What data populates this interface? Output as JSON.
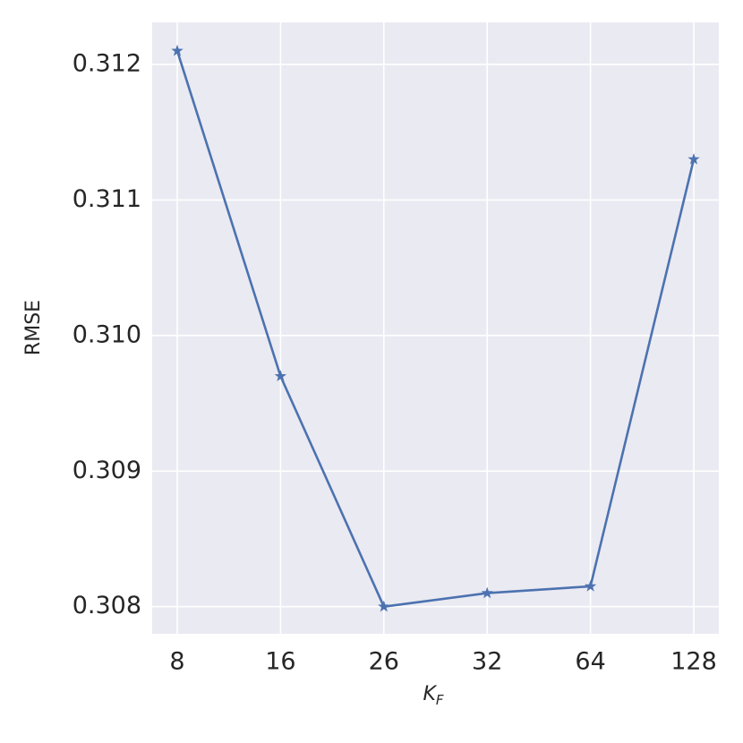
{
  "chart_data": {
    "type": "line",
    "ylabel": "RMSE",
    "xlabel": {
      "main": "K",
      "sub": "F"
    },
    "categories": [
      "8",
      "16",
      "26",
      "32",
      "64",
      "128"
    ],
    "series": [
      {
        "color": "#4c72b0",
        "values": [
          0.3121,
          0.3097,
          0.308,
          0.3081,
          0.30815,
          0.3113
        ]
      }
    ],
    "ylim": [
      0.3078,
      0.31231
    ],
    "yticks": [
      0.308,
      0.309,
      {
        "value": 0.31,
        "label": "0.310"
      },
      0.311,
      0.312
    ],
    "grid": true,
    "marker": "star"
  }
}
